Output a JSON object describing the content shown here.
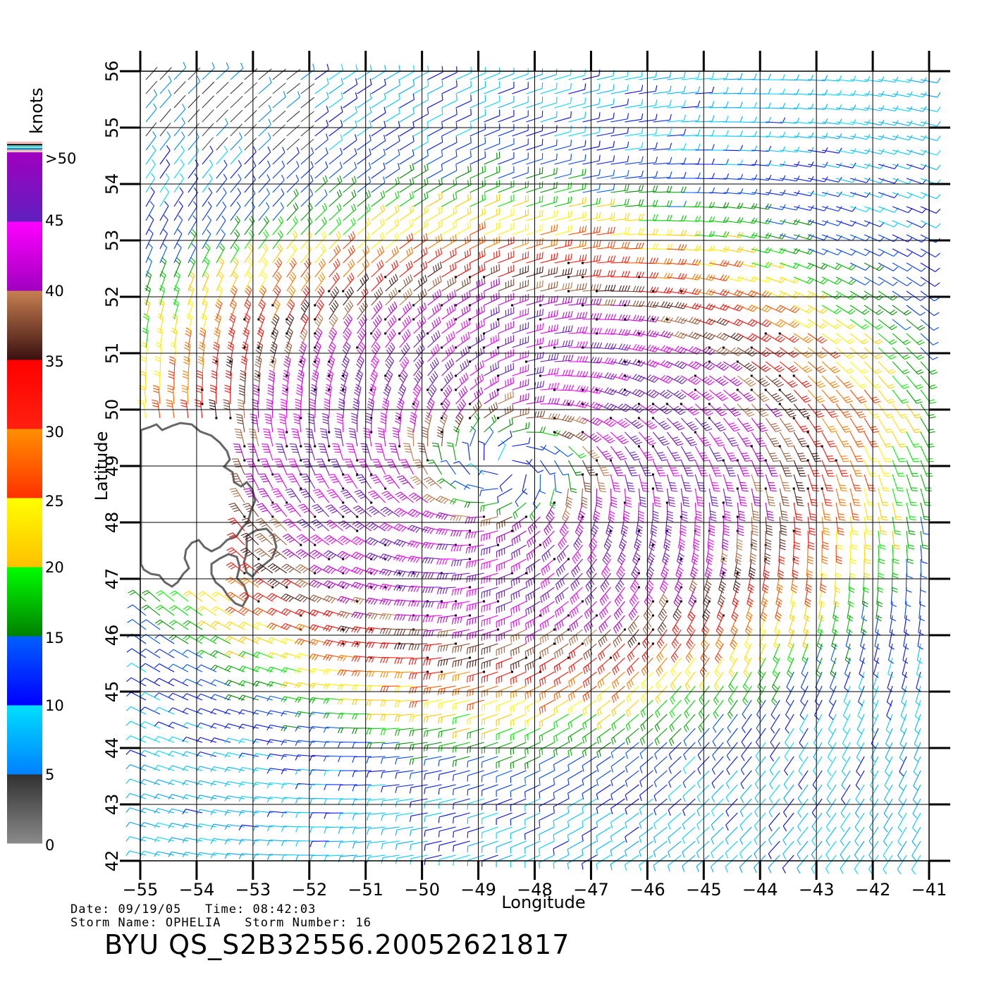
{
  "map": {
    "x_axis_label": "Longitude",
    "y_axis_label": "Latitude",
    "lon_ticks": [
      "−55",
      "−54",
      "−53",
      "−52",
      "−51",
      "−50",
      "−49",
      "−48",
      "−47",
      "−46",
      "−45",
      "−44",
      "−43",
      "−42",
      "−41"
    ],
    "lat_ticks": [
      "56",
      "55",
      "54",
      "53",
      "52",
      "51",
      "50",
      "49",
      "48",
      "47",
      "46",
      "45",
      "44",
      "43",
      "42"
    ],
    "lon_range": [
      -55,
      -41
    ],
    "lat_range": [
      42,
      56
    ],
    "grid": true,
    "storm_center": {
      "lon": -48.5,
      "lat": 49.0
    },
    "land_color": "#666666"
  },
  "legend": {
    "unit": "knots",
    "labels": [
      ">50",
      "45",
      "40",
      "35",
      "30",
      "25",
      "20",
      "15",
      "10",
      "5",
      "0"
    ],
    "bands": [
      {
        "range": [
          0,
          5
        ],
        "top": "#303030",
        "bottom": "#8a8a8a"
      },
      {
        "range": [
          5,
          10
        ],
        "top": "#00e0ff",
        "bottom": "#0080ff"
      },
      {
        "range": [
          10,
          15
        ],
        "top": "#0060ff",
        "bottom": "#0000ff"
      },
      {
        "range": [
          15,
          20
        ],
        "top": "#00ff00",
        "bottom": "#008000"
      },
      {
        "range": [
          20,
          25
        ],
        "top": "#ffff00",
        "bottom": "#ffc000"
      },
      {
        "range": [
          25,
          30
        ],
        "top": "#ff9000",
        "bottom": "#ff3000"
      },
      {
        "range": [
          30,
          35
        ],
        "top": "#ff0000",
        "bottom": "#ff2010"
      },
      {
        "range": [
          35,
          40
        ],
        "top": "#c88050",
        "bottom": "#3a1010"
      },
      {
        "range": [
          40,
          45
        ],
        "top": "#ff00ff",
        "bottom": "#a000c0"
      },
      {
        "range": [
          45,
          50
        ],
        "top": "#a000c0",
        "bottom": "#6020c0"
      }
    ]
  },
  "info": {
    "date_label": "Date:",
    "date": "09/19/05",
    "time_label": "Time:",
    "time": "08:42:03",
    "storm_name_label": "Storm Name:",
    "storm_name": "OPHELIA",
    "storm_number_label": "Storm Number:",
    "storm_number": "16",
    "product": "BYU QS_S2B32556.20052621817"
  }
}
